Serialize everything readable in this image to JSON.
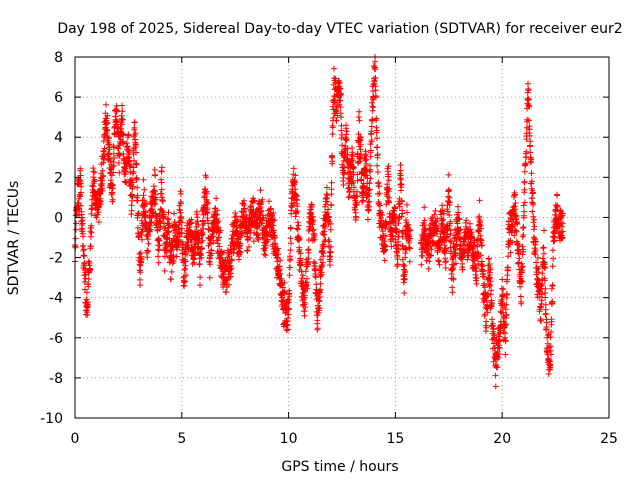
{
  "chart_data": {
    "type": "scatter",
    "title": "Day 198 of 2025, Sidereal Day-to-day VTEC variation (SDTVAR) for receiver eur2",
    "xlabel": "GPS time / hours",
    "ylabel": "SDTVAR / TECUs",
    "xlim": [
      0,
      25
    ],
    "ylim": [
      -10,
      8
    ],
    "xticks": [
      0,
      5,
      10,
      15,
      20,
      25
    ],
    "xtick_labels": [
      "0",
      "5",
      "10",
      "15",
      "20",
      "25"
    ],
    "yticks": [
      -10,
      -8,
      -6,
      -4,
      -2,
      0,
      2,
      4,
      6,
      8
    ],
    "ytick_labels": [
      "-10",
      "-8",
      "-6",
      "-4",
      "-2",
      "0",
      "2",
      "4",
      "6",
      "8"
    ],
    "grid": true,
    "marker": "+",
    "color": "#ff0000",
    "series": [
      {
        "name": "SDTVAR",
        "trend": [
          [
            0.0,
            -1.8
          ],
          [
            0.1,
            1.0
          ],
          [
            0.25,
            1.5
          ],
          [
            0.4,
            -2.0
          ],
          [
            0.55,
            -4.5
          ],
          [
            0.7,
            -2.0
          ],
          [
            0.85,
            2.2
          ],
          [
            1.0,
            0.5
          ],
          [
            1.15,
            1.0
          ],
          [
            1.3,
            2.5
          ],
          [
            1.45,
            5.0
          ],
          [
            1.6,
            3.0
          ],
          [
            1.75,
            1.0
          ],
          [
            1.9,
            5.5
          ],
          [
            2.05,
            3.0
          ],
          [
            2.2,
            5.0
          ],
          [
            2.35,
            2.0
          ],
          [
            2.5,
            3.5
          ],
          [
            2.65,
            1.0
          ],
          [
            2.8,
            4.5
          ],
          [
            2.95,
            0.0
          ],
          [
            3.05,
            -3.0
          ],
          [
            3.2,
            1.0
          ],
          [
            3.4,
            -1.0
          ],
          [
            3.6,
            0.5
          ],
          [
            3.75,
            1.5
          ],
          [
            3.9,
            -2.0
          ],
          [
            4.05,
            2.0
          ],
          [
            4.2,
            -1.5
          ],
          [
            4.35,
            -0.5
          ],
          [
            4.5,
            -2.5
          ],
          [
            4.65,
            -0.5
          ],
          [
            4.8,
            -1.5
          ],
          [
            4.95,
            0.5
          ],
          [
            5.1,
            -3.0
          ],
          [
            5.25,
            -1.0
          ],
          [
            5.4,
            -0.5
          ],
          [
            5.55,
            -2.0
          ],
          [
            5.7,
            -0.5
          ],
          [
            5.85,
            -2.5
          ],
          [
            6.0,
            0.0
          ],
          [
            6.15,
            1.5
          ],
          [
            6.3,
            -2.0
          ],
          [
            6.45,
            -0.5
          ],
          [
            6.6,
            0.2
          ],
          [
            6.75,
            -1.5
          ],
          [
            6.9,
            -2.5
          ],
          [
            7.1,
            -3.0
          ],
          [
            7.3,
            -2.0
          ],
          [
            7.5,
            -0.5
          ],
          [
            7.7,
            -1.5
          ],
          [
            7.9,
            0.5
          ],
          [
            8.1,
            -1.0
          ],
          [
            8.3,
            0.2
          ],
          [
            8.5,
            -0.8
          ],
          [
            8.7,
            0.5
          ],
          [
            8.9,
            -1.5
          ],
          [
            9.1,
            0.0
          ],
          [
            9.25,
            -0.5
          ],
          [
            9.4,
            -2.0
          ],
          [
            9.55,
            -2.5
          ],
          [
            9.7,
            -4.0
          ],
          [
            9.85,
            -4.5
          ],
          [
            10.0,
            -5.0
          ],
          [
            10.15,
            1.0
          ],
          [
            10.3,
            1.5
          ],
          [
            10.45,
            -1.0
          ],
          [
            10.6,
            -3.0
          ],
          [
            10.75,
            -4.5
          ],
          [
            10.9,
            -2.0
          ],
          [
            11.05,
            0.5
          ],
          [
            11.2,
            -1.5
          ],
          [
            11.35,
            -5.0
          ],
          [
            11.5,
            -3.0
          ],
          [
            11.65,
            -1.0
          ],
          [
            11.8,
            1.0
          ],
          [
            11.95,
            -2.0
          ],
          [
            12.1,
            6.5
          ],
          [
            12.25,
            5.5
          ],
          [
            12.4,
            6.8
          ],
          [
            12.55,
            2.0
          ],
          [
            12.7,
            4.0
          ],
          [
            12.85,
            1.5
          ],
          [
            13.0,
            3.0
          ],
          [
            13.15,
            0.0
          ],
          [
            13.3,
            4.5
          ],
          [
            13.45,
            1.0
          ],
          [
            13.6,
            2.5
          ],
          [
            13.75,
            0.5
          ],
          [
            13.9,
            5.0
          ],
          [
            14.05,
            7.5
          ],
          [
            14.2,
            1.0
          ],
          [
            14.35,
            -0.5
          ],
          [
            14.5,
            -1.5
          ],
          [
            14.65,
            2.0
          ],
          [
            14.8,
            -1.0
          ],
          [
            14.95,
            0.5
          ],
          [
            15.1,
            -2.0
          ],
          [
            15.25,
            2.5
          ],
          [
            15.4,
            -3.5
          ],
          [
            15.55,
            0.0
          ],
          [
            15.7,
            -1.5
          ],
          [
            16.2,
            -2.0
          ],
          [
            16.35,
            -0.5
          ],
          [
            16.5,
            -1.5
          ],
          [
            16.9,
            -0.5
          ],
          [
            17.05,
            -1.5
          ],
          [
            17.2,
            0.0
          ],
          [
            17.35,
            -2.0
          ],
          [
            17.5,
            1.2
          ],
          [
            17.65,
            -3.0
          ],
          [
            17.8,
            -1.5
          ],
          [
            17.95,
            0.0
          ],
          [
            18.1,
            -2.0
          ],
          [
            18.3,
            -1.0
          ],
          [
            18.6,
            -1.5
          ],
          [
            18.8,
            -2.5
          ],
          [
            18.95,
            0.0
          ],
          [
            19.1,
            -3.0
          ],
          [
            19.25,
            -5.0
          ],
          [
            19.4,
            -2.5
          ],
          [
            19.55,
            -5.5
          ],
          [
            19.7,
            -7.5
          ],
          [
            19.85,
            -6.0
          ],
          [
            20.0,
            -4.0
          ],
          [
            20.15,
            -6.0
          ],
          [
            20.3,
            -1.0
          ],
          [
            20.45,
            -0.5
          ],
          [
            20.6,
            0.5
          ],
          [
            20.75,
            -2.0
          ],
          [
            20.9,
            -3.5
          ],
          [
            21.05,
            1.5
          ],
          [
            21.2,
            6.2
          ],
          [
            21.35,
            2.5
          ],
          [
            21.5,
            -1.0
          ],
          [
            21.65,
            -3.0
          ],
          [
            21.8,
            -4.5
          ],
          [
            21.95,
            -1.5
          ],
          [
            22.1,
            -6.5
          ],
          [
            22.25,
            -7.5
          ],
          [
            22.4,
            -1.0
          ],
          [
            22.55,
            0.5
          ],
          [
            22.7,
            -0.5
          ],
          [
            22.85,
            -0.5
          ]
        ],
        "scatter_tecu": 0.9,
        "points_per_hour": 150
      }
    ]
  }
}
